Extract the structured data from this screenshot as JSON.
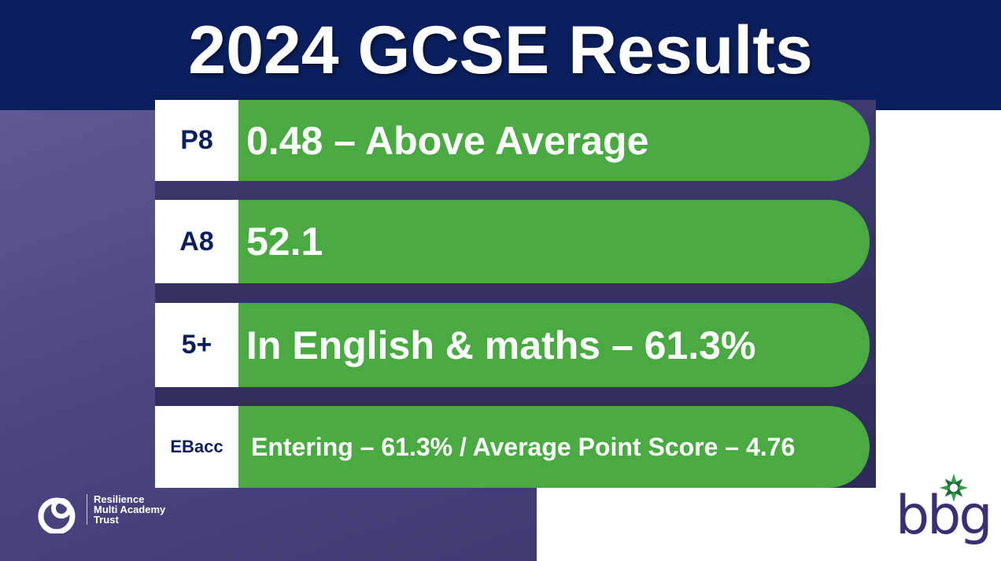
{
  "header": {
    "title": "2024 GCSE Results"
  },
  "rows": [
    {
      "label": "P8",
      "text": "0.48 – Above Average"
    },
    {
      "label": "A8",
      "text": "52.1"
    },
    {
      "label": "5+",
      "text": "In English & maths – 61.3%"
    },
    {
      "label": "EBacc",
      "text": "Entering – 61.3% / Average Point Score – 4.76"
    }
  ],
  "logos": {
    "trust": [
      "Resilience",
      "Multi Academy",
      "Trust"
    ],
    "school": "bbg"
  }
}
